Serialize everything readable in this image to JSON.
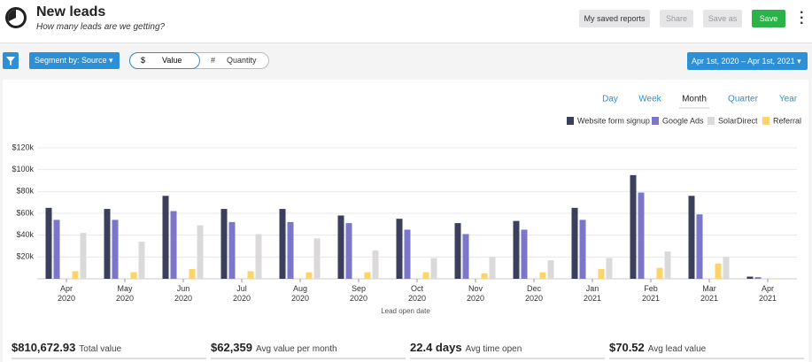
{
  "header": {
    "title": "New leads",
    "subtitle": "How many leads are we getting?",
    "buttons": [
      "My saved reports",
      "Share",
      "Save as",
      "Save"
    ]
  },
  "toolbar": {
    "segment": "Segment by: Source",
    "toggle": [
      {
        "symbol": "$",
        "label": "Value"
      },
      {
        "symbol": "#",
        "label": "Quantity"
      }
    ],
    "date_range": "Apr 1st, 2020 – Apr 1st, 2021"
  },
  "tabs": {
    "items": [
      "Day",
      "Week",
      "Month",
      "Quarter",
      "Year"
    ],
    "selected": 2
  },
  "chart_data": {
    "type": "bar",
    "x_label": "Lead open date",
    "categories": [
      "Apr 2020",
      "May 2020",
      "Jun 2020",
      "Jul 2020",
      "Aug 2020",
      "Sep 2020",
      "Oct 2020",
      "Nov 2020",
      "Dec 2020",
      "Jan 2021",
      "Feb 2021",
      "Mar 2021",
      "Apr 2021"
    ],
    "series": [
      {
        "name": "Website form signup",
        "color": "#3b3f5c",
        "values": [
          65000,
          64000,
          76000,
          64000,
          64000,
          58000,
          55000,
          51000,
          53000,
          65000,
          95000,
          76000,
          2000
        ]
      },
      {
        "name": "Google Ads",
        "color": "#7b76c9",
        "values": [
          54000,
          54000,
          62000,
          52000,
          52000,
          51000,
          45000,
          41000,
          45000,
          54000,
          79000,
          59000,
          1500
        ]
      },
      {
        "name": "SolarDirect",
        "color": "#dcd9d9",
        "values": [
          42000,
          34000,
          49000,
          41000,
          37000,
          26000,
          19000,
          20000,
          17000,
          19000,
          25000,
          20000,
          500
        ]
      },
      {
        "name": "Referral",
        "color": "#fbd46b",
        "values": [
          7000,
          6000,
          9000,
          7000,
          6000,
          6000,
          6000,
          5000,
          6000,
          9000,
          10000,
          14000,
          300
        ]
      }
    ],
    "ylim": [
      0,
      120000
    ],
    "yticks": [
      {
        "value": 20000,
        "label": "$20k"
      },
      {
        "value": 40000,
        "label": "$40k"
      },
      {
        "value": 60000,
        "label": "$60k"
      },
      {
        "value": 80000,
        "label": "$80k"
      },
      {
        "value": 100000,
        "label": "$100k"
      },
      {
        "value": 120000,
        "label": "$120k"
      }
    ],
    "grid": true
  },
  "stats": [
    {
      "value": "$810,672.93",
      "label": "Total value"
    },
    {
      "value": "$62,359",
      "label": "Avg value per month"
    },
    {
      "value": "22.4 days",
      "label": "Avg time open"
    },
    {
      "value": "$70.52",
      "label": "Avg lead value"
    }
  ]
}
